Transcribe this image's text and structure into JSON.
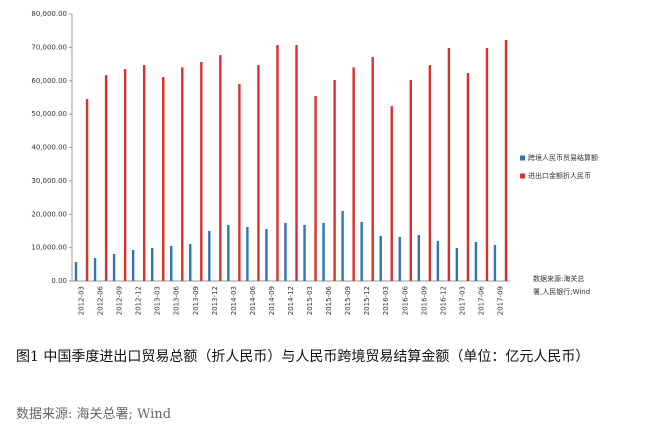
{
  "chart_data": {
    "type": "bar",
    "categories": [
      "2012-03",
      "2012-06",
      "2012-09",
      "2012-12",
      "2013-03",
      "2013-06",
      "2013-09",
      "2013-12",
      "2014-03",
      "2014-06",
      "2014-09",
      "2014-12",
      "2015-03",
      "2015-06",
      "2015-09",
      "2015-12",
      "2016-03",
      "2016-06",
      "2016-09",
      "2016-12",
      "2017-03",
      "2017-06",
      "2017-09"
    ],
    "series": [
      {
        "name": "跨境人民币贸易结算额",
        "color": "#2e75b6",
        "values": [
          5700,
          6900,
          8100,
          9300,
          9900,
          10500,
          11100,
          15000,
          16800,
          16200,
          15600,
          17400,
          16800,
          17400,
          21000,
          17700,
          13500,
          13200,
          13800,
          12000,
          9900,
          11700,
          10800
        ]
      },
      {
        "name": "进出口金额折人民币",
        "color": "#d9302c",
        "values": [
          54500,
          61700,
          63500,
          64700,
          61100,
          64000,
          65600,
          67700,
          59000,
          64700,
          70700,
          70700,
          55400,
          60200,
          64000,
          67100,
          52400,
          60200,
          64700,
          69800,
          62300,
          69800,
          72200
        ]
      }
    ],
    "ylim": [
      0,
      80000
    ],
    "yticks": [
      {
        "value": 0,
        "label": "0.00"
      },
      {
        "value": 10000,
        "label": "10,000.00"
      },
      {
        "value": 20000,
        "label": "20,000.00"
      },
      {
        "value": 30000,
        "label": "30,000.00"
      },
      {
        "value": 40000,
        "label": "40,000.00"
      },
      {
        "value": 50000,
        "label": "50,000.00"
      },
      {
        "value": 60000,
        "label": "60,000.00"
      },
      {
        "value": 70000,
        "label": "70,000.00"
      },
      {
        "value": 80000,
        "label": "80,000.00"
      }
    ],
    "grid": false,
    "legend": "right",
    "source_note": [
      "数据来源:海关总",
      "署,人民银行;Wind"
    ]
  },
  "caption": {
    "title": "图1 中国季度进出口贸易总额（折人民币）与人民币跨境贸易结算金额（单位：亿元人民币）",
    "source": "数据来源: 海关总署; Wind"
  }
}
